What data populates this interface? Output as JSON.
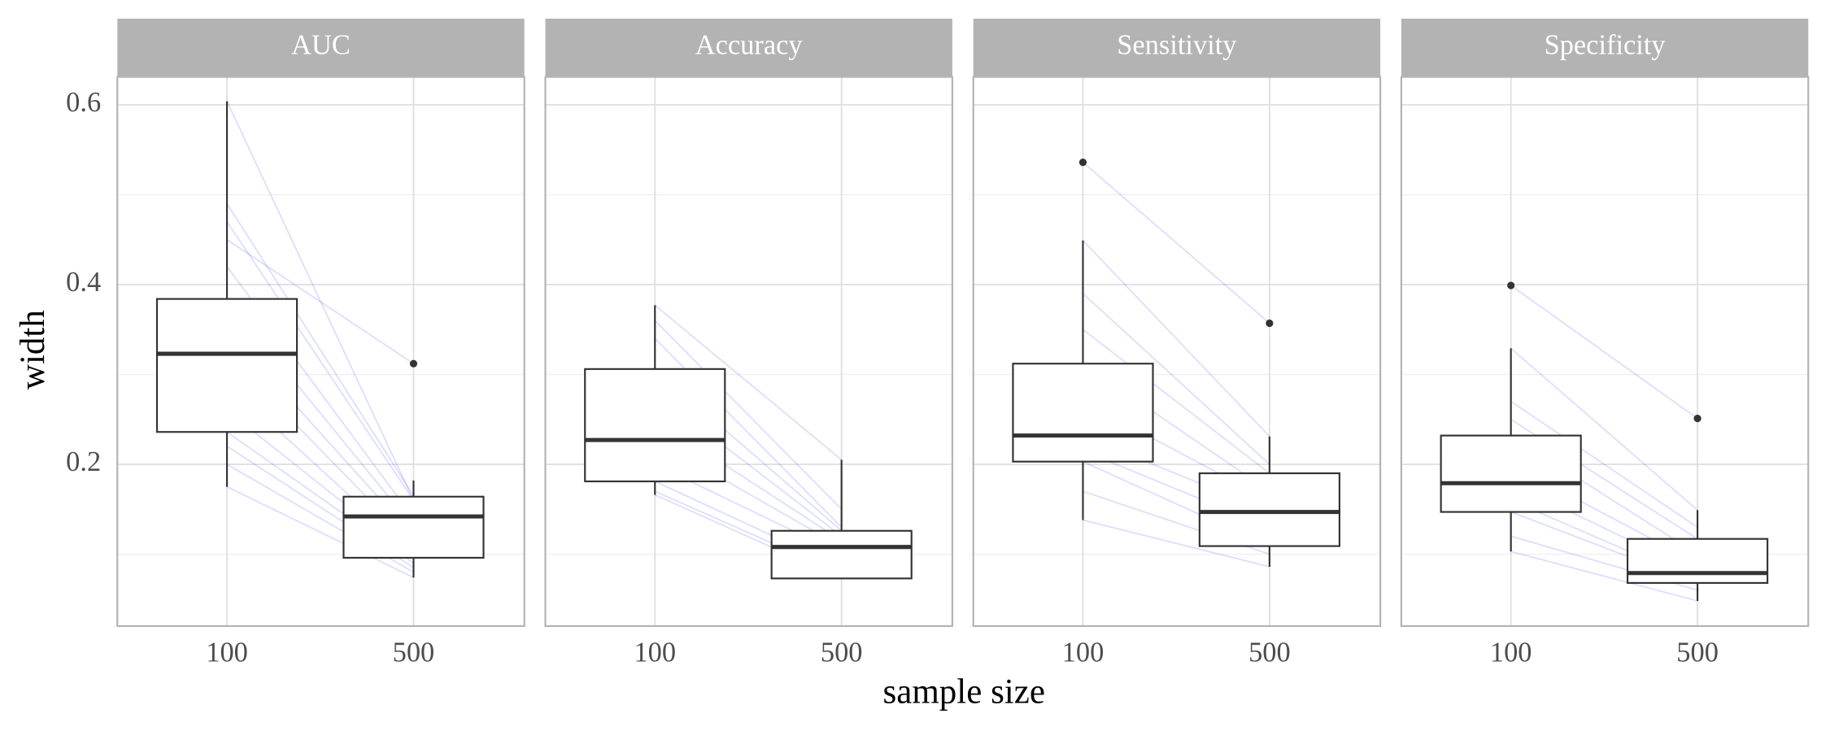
{
  "chart_data": {
    "type": "box",
    "y_label": "width",
    "x_label": "sample size",
    "ylim": [
      0.02,
      0.631
    ],
    "yticks": [
      0.2,
      0.4,
      0.6
    ],
    "minor_yticks": [
      0.1,
      0.3,
      0.5
    ],
    "categories": [
      "100",
      "500"
    ],
    "box_color": "#333333",
    "line_color": "#0000ff",
    "grid": true,
    "panels": [
      {
        "title": "AUC",
        "boxes": [
          {
            "whislo": 0.175,
            "q1": 0.236,
            "med": 0.323,
            "q3": 0.384,
            "whishi": 0.604,
            "fliers": []
          },
          {
            "whislo": 0.074,
            "q1": 0.096,
            "med": 0.142,
            "q3": 0.164,
            "whishi": 0.182,
            "fliers": [
              0.312
            ]
          }
        ],
        "pairs": [
          [
            0.604,
            0.16
          ],
          [
            0.49,
            0.165
          ],
          [
            0.47,
            0.16
          ],
          [
            0.45,
            0.312
          ],
          [
            0.42,
            0.14
          ],
          [
            0.384,
            0.13
          ],
          [
            0.35,
            0.12
          ],
          [
            0.323,
            0.11
          ],
          [
            0.29,
            0.1
          ],
          [
            0.26,
            0.095
          ],
          [
            0.236,
            0.09
          ],
          [
            0.22,
            0.085
          ],
          [
            0.2,
            0.08
          ],
          [
            0.175,
            0.074
          ]
        ]
      },
      {
        "title": "Accuracy",
        "boxes": [
          {
            "whislo": 0.166,
            "q1": 0.181,
            "med": 0.227,
            "q3": 0.306,
            "whishi": 0.377,
            "fliers": []
          },
          {
            "whislo": 0.073,
            "q1": 0.073,
            "med": 0.108,
            "q3": 0.126,
            "whishi": 0.205,
            "fliers": []
          }
        ],
        "pairs": [
          [
            0.377,
            0.205
          ],
          [
            0.36,
            0.15
          ],
          [
            0.34,
            0.13
          ],
          [
            0.306,
            0.126
          ],
          [
            0.28,
            0.12
          ],
          [
            0.25,
            0.115
          ],
          [
            0.227,
            0.108
          ],
          [
            0.2,
            0.1
          ],
          [
            0.181,
            0.085
          ],
          [
            0.17,
            0.078
          ],
          [
            0.166,
            0.073
          ]
        ]
      },
      {
        "title": "Sensitivity",
        "boxes": [
          {
            "whislo": 0.138,
            "q1": 0.203,
            "med": 0.232,
            "q3": 0.312,
            "whishi": 0.449,
            "fliers": [
              0.536
            ]
          },
          {
            "whislo": 0.086,
            "q1": 0.109,
            "med": 0.147,
            "q3": 0.19,
            "whishi": 0.231,
            "fliers": [
              0.357
            ]
          }
        ],
        "pairs": [
          [
            0.536,
            0.357
          ],
          [
            0.449,
            0.231
          ],
          [
            0.39,
            0.2
          ],
          [
            0.35,
            0.19
          ],
          [
            0.312,
            0.17
          ],
          [
            0.27,
            0.16
          ],
          [
            0.232,
            0.147
          ],
          [
            0.215,
            0.13
          ],
          [
            0.203,
            0.109
          ],
          [
            0.17,
            0.1
          ],
          [
            0.138,
            0.086
          ]
        ]
      },
      {
        "title": "Specificity",
        "boxes": [
          {
            "whislo": 0.103,
            "q1": 0.147,
            "med": 0.179,
            "q3": 0.232,
            "whishi": 0.329,
            "fliers": [
              0.399
            ]
          },
          {
            "whislo": 0.048,
            "q1": 0.068,
            "med": 0.079,
            "q3": 0.117,
            "whishi": 0.149,
            "fliers": [
              0.251
            ]
          }
        ],
        "pairs": [
          [
            0.399,
            0.251
          ],
          [
            0.329,
            0.149
          ],
          [
            0.27,
            0.13
          ],
          [
            0.25,
            0.117
          ],
          [
            0.232,
            0.1
          ],
          [
            0.2,
            0.09
          ],
          [
            0.179,
            0.079
          ],
          [
            0.16,
            0.07
          ],
          [
            0.147,
            0.068
          ],
          [
            0.12,
            0.06
          ],
          [
            0.103,
            0.048
          ]
        ]
      }
    ]
  }
}
